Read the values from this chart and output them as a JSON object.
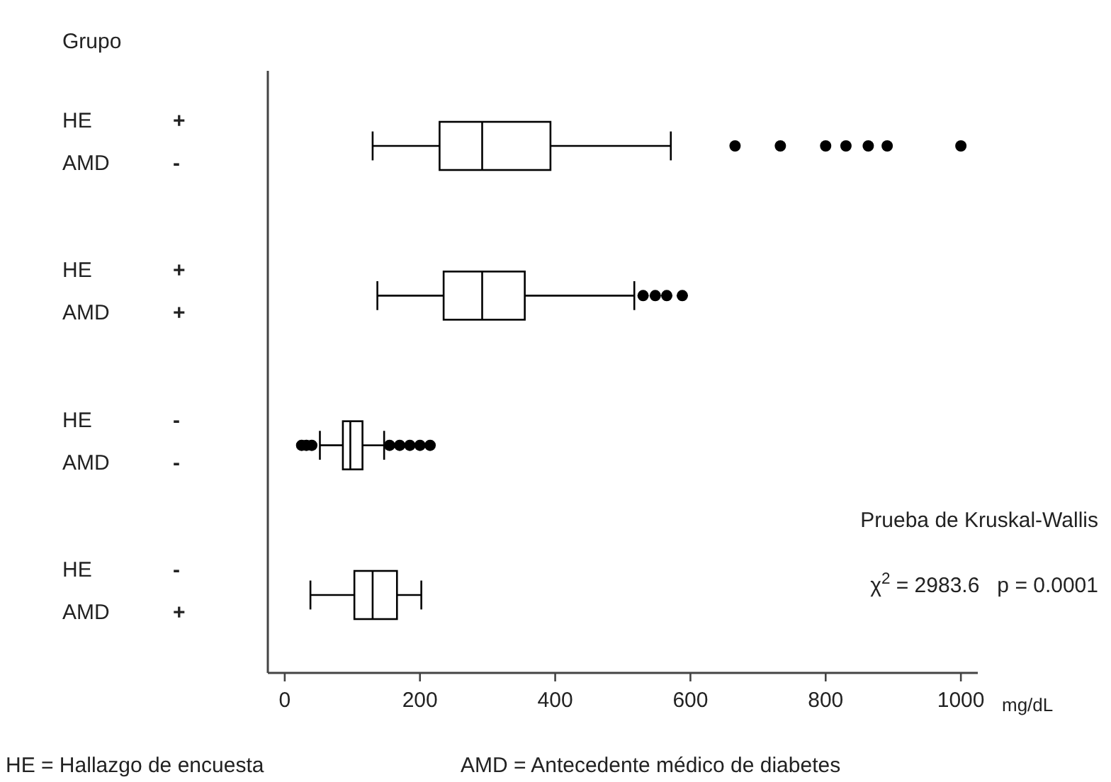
{
  "chart_data": {
    "type": "box",
    "orientation": "horizontal",
    "xlabel": "mg/dL",
    "color": "#000000",
    "categories": [
      "HE +\nAMD -",
      "HE +\nAMD +",
      "HE -\nAMD -",
      "HE -\nAMD +"
    ],
    "boxes": [
      {
        "low": 130,
        "q1": 229,
        "median": 292,
        "q3": 393,
        "high": 571,
        "outliers": [
          666,
          733,
          800,
          830,
          863,
          891,
          1000
        ]
      },
      {
        "low": 137,
        "q1": 235,
        "median": 292,
        "q3": 355,
        "high": 517,
        "outliers": [
          530,
          548,
          565,
          588
        ]
      },
      {
        "low": 52,
        "q1": 86,
        "median": 97,
        "q3": 115,
        "high": 147,
        "outliers": [
          25,
          32,
          40,
          155,
          170,
          185,
          200,
          215
        ]
      },
      {
        "low": 38,
        "q1": 103,
        "median": 130,
        "q3": 166,
        "high": 202
      }
    ],
    "xlim": [
      -25,
      1025
    ],
    "xticks": [
      0,
      200,
      400,
      600,
      800,
      1000
    ],
    "annotations": [
      "Grupo",
      "Prueba de Kruskal-Wallis",
      "χ$^{2}$ = 2983.6   p = 0.0001",
      "HE = Hallazgo de encuesta",
      "AMD = Antecedente médico de diabetes"
    ]
  }
}
